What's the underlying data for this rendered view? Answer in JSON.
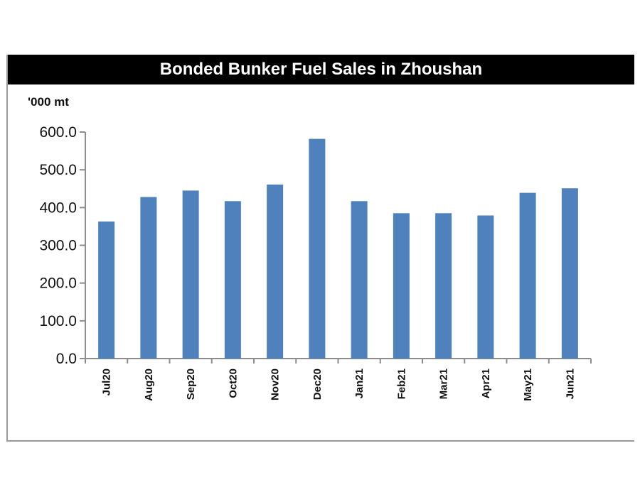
{
  "chart_data": {
    "type": "bar",
    "title": "Bonded Bunker Fuel Sales in Zhoushan",
    "ylabel": "'000 mt",
    "xlabel": "",
    "categories": [
      "Jul20",
      "Aug20",
      "Sep20",
      "Oct20",
      "Nov20",
      "Dec20",
      "Jan21",
      "Feb21",
      "Mar21",
      "Apr21",
      "May21",
      "Jun21"
    ],
    "values": [
      363,
      428,
      445,
      417,
      461,
      582,
      417,
      385,
      385,
      379,
      439,
      451
    ],
    "ylim": [
      0,
      600
    ],
    "yticks": [
      "0.0",
      "100.0",
      "200.0",
      "300.0",
      "400.0",
      "500.0",
      "600.0"
    ],
    "bar_color": "#4f81bd",
    "grid": false,
    "legend": "none"
  }
}
